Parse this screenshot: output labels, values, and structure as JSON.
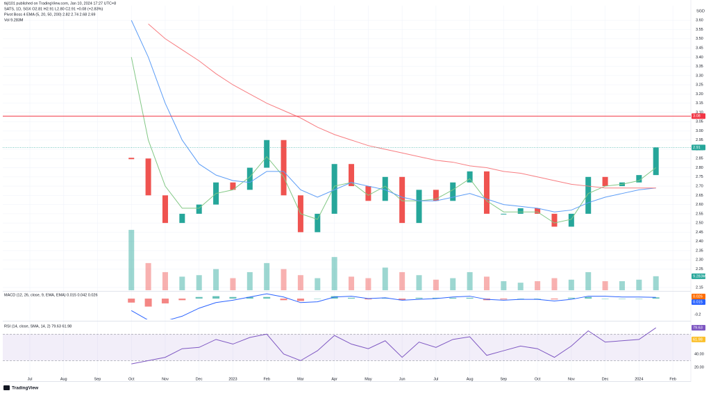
{
  "chart_data": {
    "type": "candlestick",
    "publisher": "tkjl101 published on TradingView.com, Jan 10, 2024 17:27 UTC+8",
    "symbol_legend": "SATS, 1D, SGX  O2.81 H2.91 L2.80 C2.91 +0.08 (+2.83%)",
    "ema_legend": "Pivot Boss 4 EMA (5, 20, 50, 200)  2.82  2.74  2.68  2.69",
    "vol_legend": "Vol  9.283M",
    "currency": "SGD",
    "logo": "TradingView",
    "categories": [
      "Jul",
      null,
      "Aug",
      null,
      "Sep",
      null,
      "Oct",
      null,
      "Nov",
      null,
      "Dec",
      null,
      "2023",
      null,
      "Feb",
      null,
      "Mar",
      null,
      "Apr",
      null,
      "May",
      null,
      "Jun",
      null,
      "Jul",
      null,
      "Aug",
      null,
      "Sep",
      null,
      "Oct",
      null,
      "Nov",
      null,
      "Dec",
      null,
      "2024",
      null,
      "Feb",
      null
    ],
    "values": [
      null,
      null,
      null,
      null,
      null,
      null,
      2.85,
      2.65,
      2.5,
      2.55,
      2.6,
      2.72,
      2.68,
      2.8,
      2.95,
      2.65,
      2.45,
      2.55,
      2.82,
      2.7,
      2.62,
      2.75,
      2.5,
      2.68,
      2.62,
      2.72,
      2.78,
      2.55,
      2.55,
      2.58,
      2.55,
      2.48,
      2.55,
      2.75,
      2.7,
      2.72,
      2.76,
      2.91,
      null,
      null
    ],
    "candle_colors": {
      "up": "#26a69a",
      "down": "#ef5350"
    },
    "series": [
      {
        "color": "#81c784",
        "values": [
          null,
          null,
          null,
          null,
          null,
          null,
          3.4,
          2.95,
          2.7,
          2.58,
          2.58,
          2.66,
          2.68,
          2.75,
          2.86,
          2.75,
          2.55,
          2.52,
          2.7,
          2.72,
          2.65,
          2.7,
          2.62,
          2.62,
          2.63,
          2.68,
          2.74,
          2.62,
          2.56,
          2.56,
          2.56,
          2.5,
          2.52,
          2.66,
          2.7,
          2.71,
          2.73,
          2.8,
          null,
          null
        ]
      },
      {
        "color": "#5b9cf6",
        "values": [
          null,
          null,
          null,
          null,
          null,
          null,
          3.6,
          3.4,
          3.15,
          2.95,
          2.82,
          2.76,
          2.73,
          2.72,
          2.78,
          2.78,
          2.68,
          2.64,
          2.68,
          2.72,
          2.7,
          2.68,
          2.64,
          2.62,
          2.62,
          2.64,
          2.66,
          2.63,
          2.6,
          2.59,
          2.58,
          2.56,
          2.57,
          2.61,
          2.64,
          2.66,
          2.68,
          2.69,
          null,
          null
        ]
      },
      {
        "color": "#f77c80",
        "values": [
          null,
          null,
          null,
          null,
          null,
          null,
          null,
          3.58,
          3.5,
          3.44,
          3.38,
          3.31,
          3.25,
          3.2,
          3.15,
          3.11,
          3.07,
          3.02,
          2.98,
          2.95,
          2.92,
          2.9,
          2.88,
          2.86,
          2.84,
          2.83,
          2.81,
          2.8,
          2.78,
          2.77,
          2.75,
          2.73,
          2.71,
          2.7,
          2.69,
          2.69,
          2.69,
          2.69,
          null,
          null
        ]
      }
    ],
    "ylim": [
      2.135,
      3.68
    ],
    "yticks": [
      {
        "value": 3.6,
        "label": "3.60"
      },
      3.55,
      {
        "value": 3.5,
        "label": "3.50"
      },
      3.45,
      {
        "value": 3.4,
        "label": "3.40"
      },
      3.35,
      {
        "value": 3.3,
        "label": "3.30"
      },
      3.25,
      {
        "value": 3.2,
        "label": "3.20"
      },
      3.15,
      {
        "value": 3.1,
        "label": "3.10"
      },
      3.05,
      {
        "value": 3.0,
        "label": "3.00"
      },
      2.95,
      {
        "value": 2.9,
        "label": "2.90"
      },
      2.85,
      {
        "value": 2.8,
        "label": "2.80"
      },
      2.75,
      {
        "value": 2.7,
        "label": "2.70"
      },
      2.65,
      {
        "value": 2.6,
        "label": "2.60"
      },
      2.55,
      {
        "value": 2.5,
        "label": "2.50"
      },
      2.45,
      {
        "value": 2.4,
        "label": "2.40"
      },
      2.35,
      {
        "value": 2.3,
        "label": "2.30"
      },
      2.25,
      2.15
    ],
    "grid": true,
    "resistance": {
      "value": 3.08,
      "color": "#f23645"
    },
    "last_price": {
      "value": 2.91,
      "color": "#26a69a"
    },
    "volume": {
      "values": [
        null,
        null,
        null,
        null,
        null,
        null,
        40,
        18,
        12,
        9,
        10,
        14,
        8,
        12,
        18,
        14,
        10,
        8,
        22,
        9,
        8,
        15,
        12,
        10,
        7,
        8,
        12,
        9,
        6,
        5,
        6,
        8,
        7,
        12,
        6,
        6,
        7,
        9.283,
        null,
        null
      ],
      "tag": {
        "value": 9.283,
        "label": "9.283M"
      },
      "ylim": [
        0,
        46
      ]
    },
    "macd": {
      "legend": "MACD (12, 26, close, 9, EMA, EMA)  0.015  0.042  0.026",
      "line_color": "#2962ff",
      "hist_colors": {
        "up": "#26a69a",
        "down": "#ef5350"
      },
      "line": [
        null,
        null,
        null,
        null,
        null,
        null,
        -0.15,
        -0.27,
        -0.28,
        -0.22,
        -0.12,
        -0.05,
        -0.02,
        0.02,
        0.06,
        0.02,
        -0.05,
        -0.04,
        0.02,
        0.03,
        0.0,
        0.01,
        -0.02,
        -0.01,
        0.0,
        0.02,
        0.03,
        -0.01,
        -0.02,
        -0.01,
        -0.01,
        -0.03,
        -0.01,
        0.03,
        0.03,
        0.02,
        0.02,
        0.015,
        null,
        null
      ],
      "histogram": [
        null,
        null,
        null,
        null,
        null,
        null,
        -0.05,
        -0.1,
        -0.06,
        -0.02,
        0.02,
        0.03,
        0.02,
        0.02,
        0.02,
        -0.02,
        -0.03,
        0.0,
        0.03,
        0.01,
        -0.01,
        0.01,
        -0.02,
        0.01,
        0.01,
        0.01,
        0.01,
        -0.02,
        -0.01,
        0.0,
        0.0,
        -0.01,
        0.01,
        0.02,
        0.0,
        0.0,
        0.0,
        0.015,
        null,
        null
      ],
      "tags": [
        {
          "value": 0.026,
          "color": "#ff6d00"
        },
        {
          "value": 0.015,
          "color": "#2962ff"
        }
      ],
      "ylim": [
        -0.26,
        0.087
      ],
      "yticks": [
        -0.2
      ]
    },
    "rsi": {
      "legend": "RSI (14, close, SMA, 14, 2)  79.63  61.98",
      "color": "#7e57c2",
      "values": [
        null,
        null,
        null,
        null,
        null,
        null,
        25,
        30,
        35,
        48,
        50,
        62,
        55,
        65,
        70,
        40,
        30,
        45,
        68,
        55,
        48,
        60,
        35,
        58,
        50,
        62,
        66,
        38,
        45,
        52,
        48,
        35,
        52,
        75,
        58,
        60,
        62,
        79.63,
        null,
        null
      ],
      "bands": [
        70,
        30
      ],
      "tags": [
        {
          "value": 79.63,
          "color": "#7e57c2"
        },
        {
          "value": 61.98,
          "color": "#fbc02d"
        }
      ],
      "ylim": [
        0,
        87
      ],
      "yticks": [
        {
          "value": 40,
          "label": "40.00"
        },
        {
          "value": 20,
          "label": "20.00"
        }
      ]
    }
  }
}
